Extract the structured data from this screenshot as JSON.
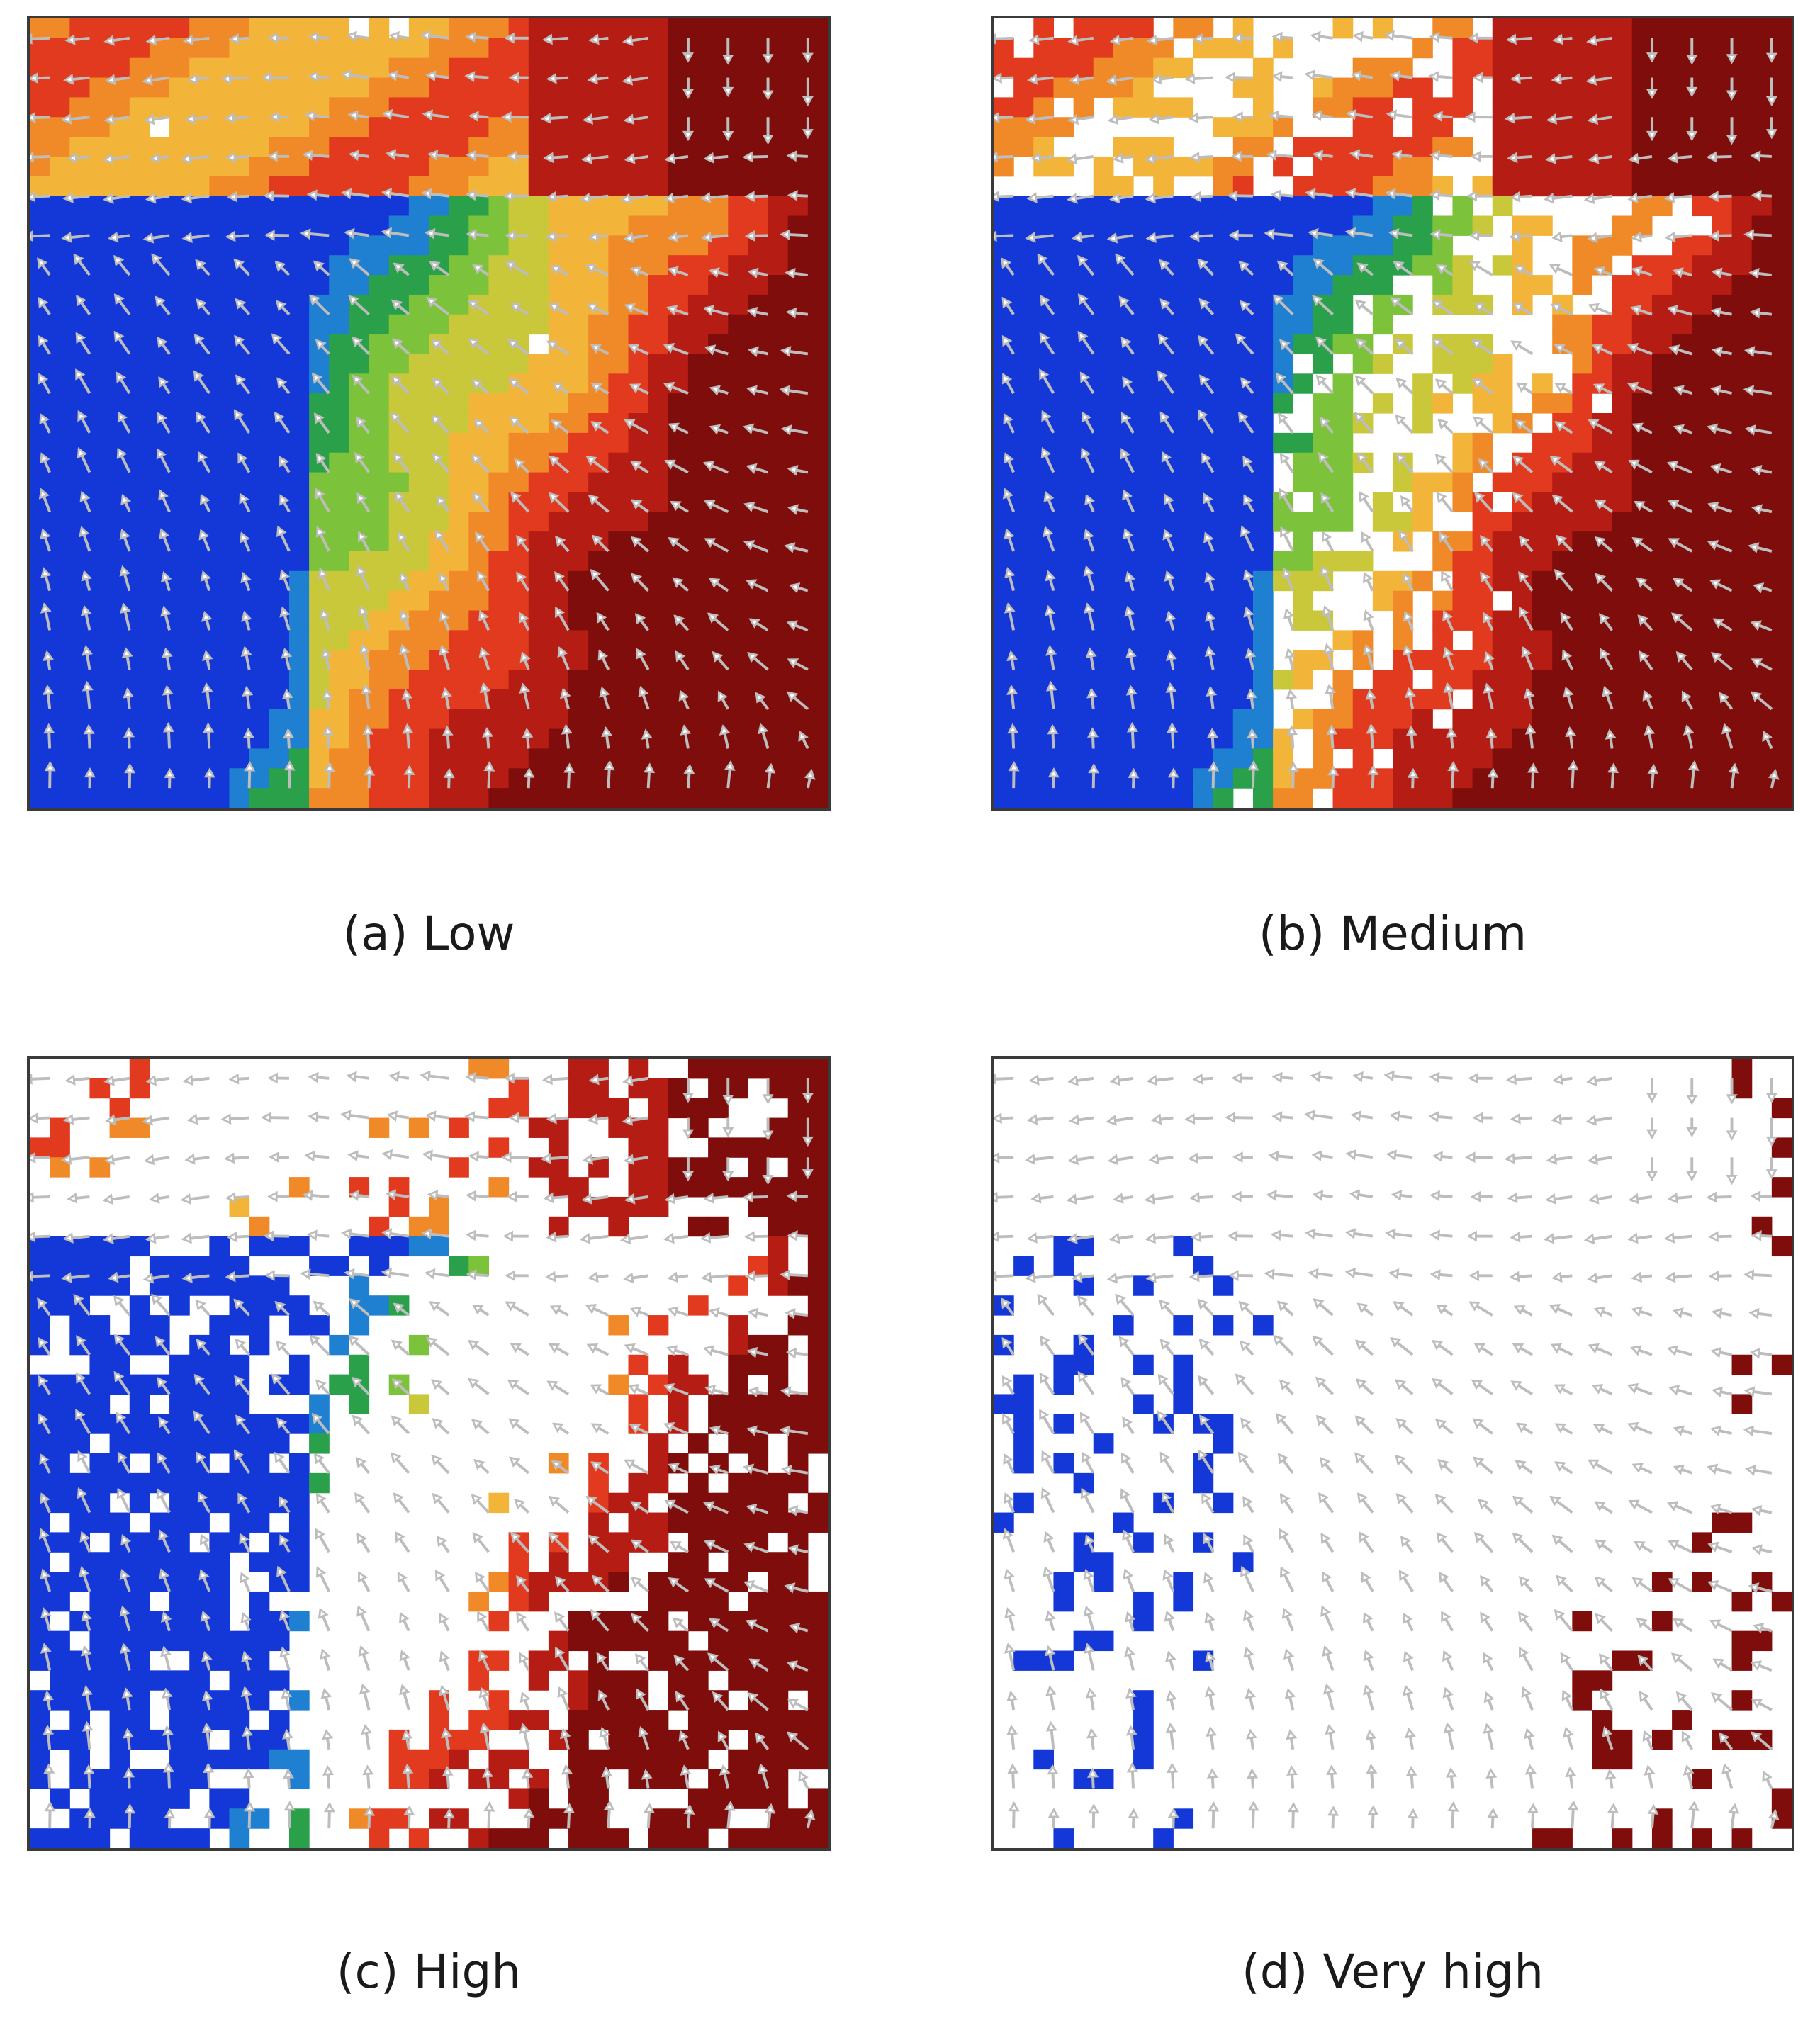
{
  "figure": {
    "panels": [
      {
        "id": "a",
        "caption": "(a) Low",
        "coverage": 0.95
      },
      {
        "id": "b",
        "caption": "(b) Medium",
        "coverage": 0.68
      },
      {
        "id": "c",
        "caption": "(c) High",
        "coverage": 0.42
      },
      {
        "id": "d",
        "caption": "(d) Very high",
        "coverage": 0.1
      }
    ],
    "colormap": [
      "#1438d8",
      "#1f7fd0",
      "#2aa04a",
      "#7cc23a",
      "#c8c83a",
      "#f3b43a",
      "#f08a28",
      "#e23a1e",
      "#b51c14",
      "#7e0d0b"
    ],
    "arrow_color": "#bdbdbd",
    "mask_color": "#ffffff"
  }
}
